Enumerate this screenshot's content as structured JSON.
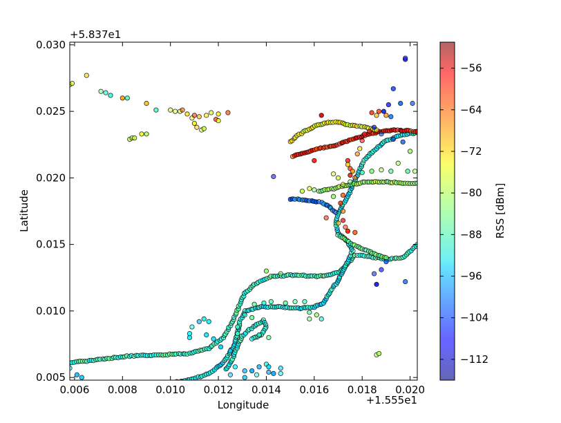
{
  "chart_data": {
    "type": "scatter",
    "title": "",
    "xlabel": "Longitude",
    "ylabel": "Latitude",
    "x_offset_text": "+1.555e1",
    "y_offset_text": "+5.837e1",
    "xlim": [
      0.0058,
      0.0203
    ],
    "ylim": [
      0.0048,
      0.0302
    ],
    "xticks": [
      0.006,
      0.008,
      0.01,
      0.012,
      0.014,
      0.016,
      0.018,
      0.02
    ],
    "xtick_labels": [
      "0.006",
      "0.008",
      "0.010",
      "0.012",
      "0.014",
      "0.016",
      "0.018",
      "0.020"
    ],
    "yticks": [
      0.005,
      0.01,
      0.015,
      0.02,
      0.025,
      0.03
    ],
    "ytick_labels": [
      "0.005",
      "0.010",
      "0.015",
      "0.020",
      "0.025",
      "0.030"
    ],
    "grid": false,
    "colorbar": {
      "label": "RSS [dBm]",
      "range": [
        -116,
        -51
      ],
      "ticks": [
        -56,
        -64,
        -72,
        -80,
        -88,
        -96,
        -104,
        -112
      ],
      "tick_labels": [
        "−56",
        "−64",
        "−72",
        "−80",
        "−88",
        "−96",
        "−104",
        "−112"
      ],
      "colormap": "jet"
    },
    "paths": [
      {
        "rss": -88,
        "points": [
          [
            0.0058,
            0.0061
          ],
          [
            0.0068,
            0.0063
          ],
          [
            0.0082,
            0.0066
          ],
          [
            0.0096,
            0.0067
          ],
          [
            0.0108,
            0.0068
          ],
          [
            0.0116,
            0.0072
          ],
          [
            0.0122,
            0.008
          ],
          [
            0.0126,
            0.0092
          ],
          [
            0.0129,
            0.0105
          ],
          [
            0.0131,
            0.0113
          ],
          [
            0.0135,
            0.012
          ],
          [
            0.0142,
            0.0126
          ],
          [
            0.0152,
            0.0127
          ],
          [
            0.016,
            0.0126
          ],
          [
            0.0167,
            0.0127
          ],
          [
            0.0171,
            0.013
          ],
          [
            0.0174,
            0.0136
          ],
          [
            0.0177,
            0.0142
          ],
          [
            0.0182,
            0.0141
          ],
          [
            0.019,
            0.0139
          ],
          [
            0.0197,
            0.014
          ],
          [
            0.0203,
            0.015
          ]
        ]
      },
      {
        "rss": -92,
        "points": [
          [
            0.0096,
            0.0045
          ],
          [
            0.0108,
            0.0048
          ],
          [
            0.0116,
            0.0053
          ],
          [
            0.0122,
            0.0061
          ],
          [
            0.0126,
            0.0072
          ],
          [
            0.0128,
            0.0083
          ],
          [
            0.0129,
            0.0092
          ],
          [
            0.0131,
            0.01
          ],
          [
            0.0138,
            0.0103
          ],
          [
            0.0146,
            0.0103
          ],
          [
            0.0154,
            0.0102
          ],
          [
            0.016,
            0.0103
          ],
          [
            0.0164,
            0.0106
          ],
          [
            0.0166,
            0.0112
          ],
          [
            0.0168,
            0.0118
          ],
          [
            0.017,
            0.0123
          ],
          [
            0.0172,
            0.013
          ],
          [
            0.0174,
            0.0137
          ],
          [
            0.0176,
            0.0145
          ],
          [
            0.0174,
            0.0152
          ],
          [
            0.017,
            0.0159
          ],
          [
            0.0169,
            0.0166
          ],
          [
            0.017,
            0.0173
          ],
          [
            0.0172,
            0.018
          ],
          [
            0.0174,
            0.0186
          ],
          [
            0.0176,
            0.0194
          ],
          [
            0.0178,
            0.0202
          ],
          [
            0.018,
            0.021
          ],
          [
            0.0182,
            0.0216
          ],
          [
            0.0186,
            0.0222
          ],
          [
            0.019,
            0.0228
          ],
          [
            0.0196,
            0.0232
          ],
          [
            0.0203,
            0.0234
          ]
        ]
      },
      {
        "rss": -90,
        "points": [
          [
            0.0123,
            0.0056
          ],
          [
            0.0126,
            0.0064
          ],
          [
            0.0128,
            0.0074
          ],
          [
            0.013,
            0.0081
          ],
          [
            0.0133,
            0.0086
          ],
          [
            0.0136,
            0.009
          ],
          [
            0.0139,
            0.0093
          ],
          [
            0.014,
            0.0088
          ],
          [
            0.0138,
            0.0082
          ],
          [
            0.0134,
            0.0079
          ]
        ]
      },
      {
        "rss": -60,
        "points": [
          [
            0.0151,
            0.0216
          ],
          [
            0.0156,
            0.0219
          ],
          [
            0.0162,
            0.0222
          ],
          [
            0.0168,
            0.0224
          ],
          [
            0.0173,
            0.0227
          ],
          [
            0.0178,
            0.023
          ],
          [
            0.0183,
            0.0233
          ],
          [
            0.0188,
            0.0235
          ],
          [
            0.0194,
            0.0236
          ],
          [
            0.0203,
            0.0235
          ]
        ]
      },
      {
        "rss": -76,
        "points": [
          [
            0.015,
            0.0227
          ],
          [
            0.0153,
            0.0232
          ],
          [
            0.0157,
            0.0236
          ],
          [
            0.0162,
            0.024
          ],
          [
            0.0166,
            0.0242
          ],
          [
            0.017,
            0.0242
          ],
          [
            0.0174,
            0.024
          ],
          [
            0.0178,
            0.0239
          ],
          [
            0.0182,
            0.0238
          ],
          [
            0.0186,
            0.0236
          ]
        ]
      },
      {
        "rss": -82,
        "points": [
          [
            0.0162,
            0.019
          ],
          [
            0.0168,
            0.0192
          ],
          [
            0.0175,
            0.0195
          ],
          [
            0.0182,
            0.0197
          ],
          [
            0.019,
            0.0197
          ],
          [
            0.0198,
            0.0196
          ],
          [
            0.0203,
            0.0196
          ]
        ]
      },
      {
        "rss": -100,
        "points": [
          [
            0.015,
            0.0184
          ],
          [
            0.0154,
            0.0184
          ],
          [
            0.0158,
            0.0183
          ],
          [
            0.0162,
            0.0182
          ],
          [
            0.0165,
            0.018
          ],
          [
            0.0167,
            0.0177
          ],
          [
            0.0169,
            0.0174
          ]
        ]
      },
      {
        "rss": -84,
        "points": [
          [
            0.017,
            0.0157
          ],
          [
            0.0176,
            0.015
          ],
          [
            0.0181,
            0.0146
          ],
          [
            0.0185,
            0.0143
          ],
          [
            0.019,
            0.014
          ]
        ]
      }
    ],
    "clusters": [
      {
        "rss": -80,
        "points": [
          [
            0.0058,
            0.027
          ],
          [
            0.0059,
            0.0271
          ]
        ]
      },
      {
        "rss": -76,
        "points": [
          [
            0.0065,
            0.0277
          ]
        ]
      },
      {
        "rss": -86,
        "points": [
          [
            0.0071,
            0.0265
          ],
          [
            0.0073,
            0.0264
          ],
          [
            0.0075,
            0.0262
          ]
        ]
      },
      {
        "rss": -70,
        "points": [
          [
            0.008,
            0.026
          ],
          [
            0.009,
            0.0256
          ]
        ]
      },
      {
        "rss": -86,
        "points": [
          [
            0.0082,
            0.026
          ],
          [
            0.0094,
            0.0251
          ]
        ]
      },
      {
        "rss": -78,
        "points": [
          [
            0.0083,
            0.0229
          ],
          [
            0.0084,
            0.023
          ],
          [
            0.0085,
            0.023
          ],
          [
            0.0088,
            0.0233
          ],
          [
            0.009,
            0.0233
          ]
        ]
      },
      {
        "rss": -76,
        "points": [
          [
            0.01,
            0.0251
          ],
          [
            0.0102,
            0.025
          ],
          [
            0.0104,
            0.025
          ],
          [
            0.0107,
            0.0248
          ],
          [
            0.0109,
            0.0245
          ],
          [
            0.011,
            0.0241
          ],
          [
            0.0111,
            0.0238
          ],
          [
            0.0113,
            0.0236
          ],
          [
            0.0114,
            0.0237
          ],
          [
            0.0115,
            0.0247
          ],
          [
            0.0117,
            0.0249
          ],
          [
            0.012,
            0.0248
          ]
        ]
      },
      {
        "rss": -64,
        "points": [
          [
            0.0105,
            0.0251
          ],
          [
            0.011,
            0.0247
          ],
          [
            0.0119,
            0.0244
          ],
          [
            0.0124,
            0.0249
          ]
        ]
      },
      {
        "rss": -72,
        "points": [
          [
            0.0112,
            0.0246
          ],
          [
            0.012,
            0.0243
          ]
        ]
      },
      {
        "rss": -104,
        "points": [
          [
            0.0143,
            0.0201
          ],
          [
            0.0191,
            0.0255
          ],
          [
            0.0193,
            0.0267
          ],
          [
            0.0196,
            0.0256
          ],
          [
            0.0201,
            0.0256
          ],
          [
            0.0189,
            0.025
          ],
          [
            0.0192,
            0.0246
          ],
          [
            0.0185,
            0.0238
          ],
          [
            0.0188,
            0.0233
          ],
          [
            0.0193,
            0.0229
          ],
          [
            0.0197,
            0.0227
          ],
          [
            0.019,
            0.0137
          ],
          [
            0.0188,
            0.0131
          ],
          [
            0.0198,
            0.0122
          ],
          [
            0.0185,
            0.0128
          ],
          [
            0.0186,
            0.012
          ]
        ]
      },
      {
        "rss": -108,
        "points": [
          [
            0.0198,
            0.0289
          ],
          [
            0.0198,
            0.029
          ]
        ]
      },
      {
        "rss": -60,
        "points": [
          [
            0.0163,
            0.0247
          ],
          [
            0.0184,
            0.0249
          ],
          [
            0.0187,
            0.025
          ],
          [
            0.016,
            0.0213
          ],
          [
            0.0174,
            0.0213
          ],
          [
            0.0175,
            0.0207
          ],
          [
            0.0174,
            0.016
          ],
          [
            0.0172,
            0.0168
          ],
          [
            0.0171,
            0.0181
          ],
          [
            0.0172,
            0.0187
          ],
          [
            0.0175,
            0.0202
          ],
          [
            0.0181,
            0.0233
          ],
          [
            0.018,
            0.0228
          ],
          [
            0.0183,
            0.0235
          ]
        ]
      },
      {
        "rss": -70,
        "points": [
          [
            0.0174,
            0.021
          ],
          [
            0.0176,
            0.0205
          ],
          [
            0.0177,
            0.02
          ],
          [
            0.0178,
            0.0218
          ],
          [
            0.0179,
            0.0222
          ],
          [
            0.0186,
            0.0247
          ],
          [
            0.019,
            0.0247
          ],
          [
            0.0172,
            0.0175
          ],
          [
            0.017,
            0.0166
          ]
        ]
      },
      {
        "rss": -84,
        "points": [
          [
            0.018,
            0.0204
          ],
          [
            0.0184,
            0.0205
          ],
          [
            0.0188,
            0.0206
          ],
          [
            0.0192,
            0.0205
          ],
          [
            0.0199,
            0.0205
          ],
          [
            0.0202,
            0.0205
          ],
          [
            0.0195,
            0.0211
          ],
          [
            0.02,
            0.022
          ],
          [
            0.0186,
            0.0067
          ],
          [
            0.0187,
            0.0068
          ]
        ]
      },
      {
        "rss": -94,
        "points": [
          [
            0.0108,
            0.008
          ],
          [
            0.0108,
            0.0083
          ],
          [
            0.0109,
            0.0088
          ],
          [
            0.0112,
            0.0092
          ],
          [
            0.0114,
            0.0094
          ],
          [
            0.0116,
            0.0092
          ],
          [
            0.0115,
            0.0082
          ],
          [
            0.0118,
            0.0079
          ],
          [
            0.0121,
            0.0073
          ],
          [
            0.0125,
            0.007
          ],
          [
            0.0127,
            0.0058
          ],
          [
            0.0131,
            0.0055
          ],
          [
            0.0134,
            0.0055
          ],
          [
            0.0137,
            0.0058
          ],
          [
            0.014,
            0.006
          ],
          [
            0.0141,
            0.0058
          ],
          [
            0.0141,
            0.0054
          ],
          [
            0.0143,
            0.0053
          ],
          [
            0.0146,
            0.0057
          ],
          [
            0.0146,
            0.0053
          ],
          [
            0.0131,
            0.005
          ],
          [
            0.0136,
            0.0052
          ],
          [
            0.0125,
            0.0052
          ],
          [
            0.0058,
            0.0057
          ],
          [
            0.0061,
            0.0052
          ],
          [
            0.0063,
            0.005
          ]
        ]
      },
      {
        "rss": -86,
        "points": [
          [
            0.0135,
            0.0105
          ],
          [
            0.0139,
            0.0106
          ],
          [
            0.0142,
            0.0107
          ],
          [
            0.0148,
            0.0106
          ],
          [
            0.0152,
            0.0107
          ],
          [
            0.0156,
            0.0107
          ],
          [
            0.0158,
            0.0099
          ],
          [
            0.0161,
            0.0097
          ],
          [
            0.0158,
            0.0094
          ],
          [
            0.0163,
            0.0094
          ],
          [
            0.0146,
            0.0128
          ],
          [
            0.014,
            0.013
          ],
          [
            0.0134,
            0.0095
          ],
          [
            0.0131,
            0.0097
          ],
          [
            0.0128,
            0.0088
          ],
          [
            0.0128,
            0.0083
          ],
          [
            0.0141,
            0.008
          ],
          [
            0.0137,
            0.0082
          ]
        ]
      },
      {
        "rss": -62,
        "points": [
          [
            0.0173,
            0.0163
          ],
          [
            0.0177,
            0.0159
          ],
          [
            0.0165,
            0.017
          ]
        ]
      },
      {
        "rss": -80,
        "points": [
          [
            0.0155,
            0.019
          ],
          [
            0.0158,
            0.0192
          ],
          [
            0.016,
            0.0191
          ],
          [
            0.0172,
            0.0195
          ],
          [
            0.0175,
            0.0197
          ],
          [
            0.0168,
            0.0186
          ],
          [
            0.017,
            0.02
          ],
          [
            0.0168,
            0.0203
          ]
        ]
      }
    ]
  }
}
